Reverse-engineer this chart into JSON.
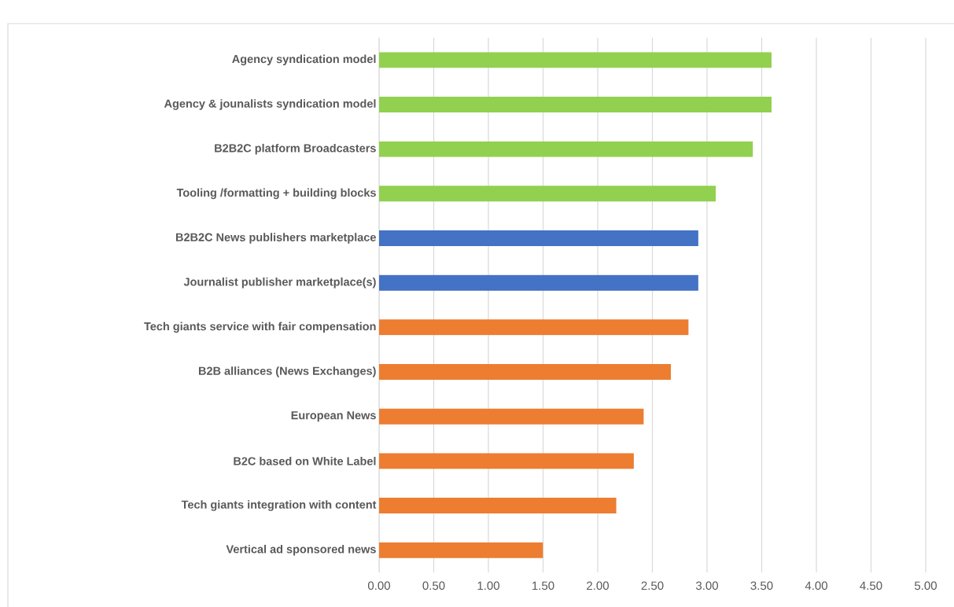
{
  "chart_data": {
    "type": "bar",
    "orientation": "horizontal",
    "categories": [
      "Agency syndication model",
      "Agency & jounalists syndication model",
      "B2B2C  platform Broadcasters",
      "Tooling /formatting + building blocks",
      "B2B2C News publishers marketplace",
      "Journalist publisher marketplace(s)",
      "Tech giants service with fair compensation",
      "B2B alliances (News Exchanges)",
      "European News",
      "B2C based on White Label",
      "Tech giants integration with content",
      "Vertical ad sponsored news"
    ],
    "values": [
      3.59,
      3.59,
      3.42,
      3.08,
      2.92,
      2.92,
      2.83,
      2.67,
      2.42,
      2.33,
      2.17,
      1.5
    ],
    "colors": [
      "#92d050",
      "#92d050",
      "#92d050",
      "#92d050",
      "#4472c4",
      "#4472c4",
      "#ed7d31",
      "#ed7d31",
      "#ed7d31",
      "#ed7d31",
      "#ed7d31",
      "#ed7d31"
    ],
    "xlim": [
      0,
      5
    ],
    "xticks": [
      {
        "value": 0,
        "label": "0.00"
      },
      {
        "value": 0.5,
        "label": "0.50"
      },
      {
        "value": 1,
        "label": "1.00"
      },
      {
        "value": 1.5,
        "label": "1.50"
      },
      {
        "value": 2,
        "label": "2.00"
      },
      {
        "value": 2.5,
        "label": "2.50"
      },
      {
        "value": 3,
        "label": "3.00"
      },
      {
        "value": 3.5,
        "label": "3.50"
      },
      {
        "value": 4,
        "label": "4.00"
      },
      {
        "value": 4.5,
        "label": "4.50"
      },
      {
        "value": 5,
        "label": "5.00"
      }
    ],
    "grid": "x"
  }
}
